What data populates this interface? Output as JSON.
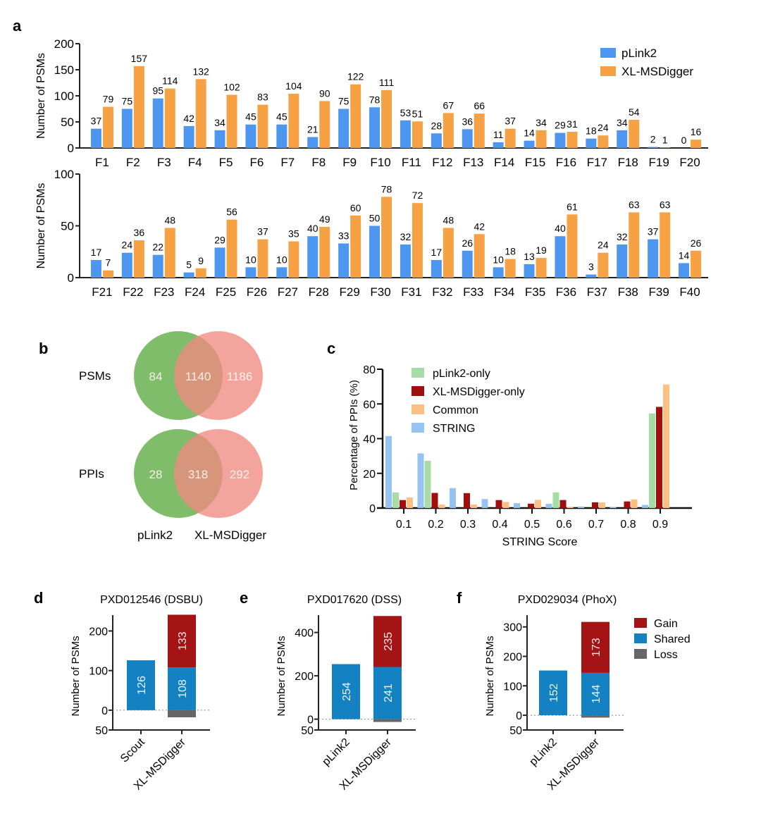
{
  "panel_labels": {
    "a": "a",
    "b": "b",
    "c": "c",
    "d": "d",
    "e": "e",
    "f": "f"
  },
  "colors": {
    "plink2": "#4d97f0",
    "xlmsdigger": "#f7a145",
    "venn_green": "#7fbd6a",
    "venn_red": "#ef8a80",
    "c_plink2_only": "#a8dca6",
    "c_xl_only": "#a10e0e",
    "c_common": "#fcc083",
    "c_string": "#97c3f0",
    "gain": "#a41414",
    "shared": "#1381c2",
    "loss": "#666666"
  },
  "chart_data": [
    {
      "id": "a-top",
      "type": "bar",
      "title": "",
      "xlabel": "",
      "ylabel": "Number of PSMs",
      "ylim": [
        0,
        200
      ],
      "yticks": [
        0,
        50,
        100,
        150,
        200
      ],
      "categories": [
        "F1",
        "F2",
        "F3",
        "F4",
        "F5",
        "F6",
        "F7",
        "F8",
        "F9",
        "F10",
        "F11",
        "F12",
        "F13",
        "F14",
        "F15",
        "F16",
        "F17",
        "F18",
        "F19",
        "F20"
      ],
      "series": [
        {
          "name": "pLink2",
          "values": [
            37,
            75,
            95,
            42,
            34,
            45,
            45,
            21,
            75,
            78,
            53,
            28,
            36,
            11,
            14,
            29,
            18,
            34,
            2,
            0
          ]
        },
        {
          "name": "XL-MSDigger",
          "values": [
            79,
            157,
            114,
            132,
            102,
            83,
            104,
            90,
            122,
            111,
            51,
            67,
            66,
            37,
            34,
            31,
            24,
            54,
            1,
            16
          ]
        }
      ],
      "legend": {
        "entries": [
          "pLink2",
          "XL-MSDigger"
        ],
        "position": "top-right"
      },
      "grid": false
    },
    {
      "id": "a-bottom",
      "type": "bar",
      "title": "",
      "xlabel": "",
      "ylabel": "Number of PSMs",
      "ylim": [
        0,
        100
      ],
      "yticks": [
        0,
        50,
        100
      ],
      "categories": [
        "F21",
        "F22",
        "F23",
        "F24",
        "F25",
        "F26",
        "F27",
        "F28",
        "F29",
        "F30",
        "F31",
        "F32",
        "F33",
        "F34",
        "F35",
        "F36",
        "F37",
        "F38",
        "F39",
        "F40"
      ],
      "series": [
        {
          "name": "pLink2",
          "values": [
            17,
            24,
            22,
            5,
            29,
            10,
            10,
            40,
            33,
            50,
            32,
            17,
            26,
            10,
            13,
            40,
            3,
            32,
            37,
            14
          ]
        },
        {
          "name": "XL-MSDigger",
          "values": [
            7,
            36,
            48,
            9,
            56,
            37,
            35,
            49,
            60,
            78,
            72,
            48,
            42,
            18,
            19,
            61,
            24,
            63,
            63,
            26
          ]
        }
      ],
      "grid": false
    },
    {
      "id": "b",
      "type": "venn",
      "rows": [
        {
          "label": "PSMs",
          "left_only": "84",
          "both": "1140",
          "right_only": "1186"
        },
        {
          "label": "PPIs",
          "left_only": "28",
          "both": "318",
          "right_only": "292"
        }
      ],
      "set_labels": [
        "pLink2",
        "XL-MSDigger"
      ]
    },
    {
      "id": "c",
      "type": "bar",
      "title": "",
      "xlabel": "STRING Score",
      "ylabel": "Percentage of PPIs (%)",
      "ylim": [
        0,
        80
      ],
      "yticks": [
        0,
        20,
        40,
        60,
        80
      ],
      "categories": [
        "0.1",
        "0.2",
        "0.3",
        "0.4",
        "0.5",
        "0.6",
        "0.7",
        "0.8",
        "0.9"
      ],
      "series": [
        {
          "name": "STRING",
          "values": [
            41.5,
            31.5,
            11.5,
            5.2,
            2.8,
            2.4,
            0.9,
            0.6,
            1.8
          ]
        },
        {
          "name": "pLink2-only",
          "values": [
            9.0,
            27.2,
            0,
            0,
            0,
            9.0,
            0,
            0,
            54.5
          ]
        },
        {
          "name": "XL-MSDigger-only",
          "values": [
            4.6,
            8.7,
            8.6,
            4.6,
            2.5,
            4.6,
            3.3,
            3.8,
            58.3
          ]
        },
        {
          "name": "Common",
          "values": [
            6.1,
            2.0,
            2.0,
            3.5,
            4.7,
            0.7,
            3.2,
            5.0,
            71.2
          ]
        }
      ],
      "legend": {
        "entries": [
          "pLink2-only",
          "XL-MSDigger-only",
          "Common",
          "STRING"
        ],
        "position": "top-left"
      },
      "grid": false
    },
    {
      "id": "d",
      "type": "stacked-bar",
      "title": "PXD012546 (DSBU)",
      "ylabel": "Number of PSMs",
      "ylim": [
        -50,
        240
      ],
      "yticks": [
        {
          "v": 200,
          "label": "200"
        },
        {
          "v": 100,
          "label": "100"
        },
        {
          "v": 0,
          "label": "0"
        },
        {
          "v": -50,
          "label": "50"
        }
      ],
      "categories": [
        "Scout",
        "XL-MSDigger"
      ],
      "bars": [
        {
          "category": "Scout",
          "shared": 126,
          "gain": 0,
          "loss": 0,
          "shared_label": "126"
        },
        {
          "category": "XL-MSDigger",
          "shared": 108,
          "gain": 133,
          "loss": 18,
          "shared_label": "108",
          "gain_label": "133"
        }
      ]
    },
    {
      "id": "e",
      "type": "stacked-bar",
      "title": "PXD017620 (DSS)",
      "ylabel": "Number of PSMs",
      "ylim": [
        -50,
        480
      ],
      "yticks": [
        {
          "v": 400,
          "label": "400"
        },
        {
          "v": 200,
          "label": "200"
        },
        {
          "v": 0,
          "label": "0"
        },
        {
          "v": -50,
          "label": "50"
        }
      ],
      "categories": [
        "pLink2",
        "XL-MSDigger"
      ],
      "bars": [
        {
          "category": "pLink2",
          "shared": 254,
          "gain": 0,
          "loss": 0,
          "shared_label": "254"
        },
        {
          "category": "XL-MSDigger",
          "shared": 241,
          "gain": 235,
          "loss": 13,
          "shared_label": "241",
          "gain_label": "235"
        }
      ]
    },
    {
      "id": "f",
      "type": "stacked-bar",
      "title": "PXD029034 (PhoX)",
      "ylabel": "Number of PSMs",
      "ylim": [
        -50,
        340
      ],
      "yticks": [
        {
          "v": 300,
          "label": "300"
        },
        {
          "v": 200,
          "label": "200"
        },
        {
          "v": 100,
          "label": "100"
        },
        {
          "v": 0,
          "label": "0"
        },
        {
          "v": -50,
          "label": "50"
        }
      ],
      "categories": [
        "pLink2",
        "XL-MSDigger"
      ],
      "bars": [
        {
          "category": "pLink2",
          "shared": 152,
          "gain": 0,
          "loss": 0,
          "shared_label": "152"
        },
        {
          "category": "XL-MSDigger",
          "shared": 144,
          "gain": 173,
          "loss": 8,
          "shared_label": "144",
          "gain_label": "173"
        }
      ],
      "legend": {
        "entries": [
          "Gain",
          "Shared",
          "Loss"
        ],
        "position": "right"
      }
    }
  ]
}
